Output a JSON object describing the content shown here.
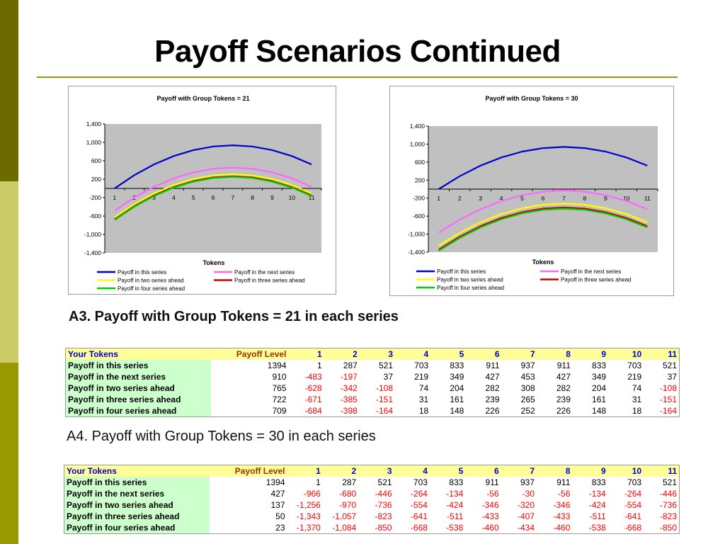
{
  "slide": {
    "title": "Payoff Scenarios Continued",
    "colors": {
      "sidebar": [
        "#6b6b00",
        "#cccc66",
        "#999900"
      ],
      "rule": "#999900"
    }
  },
  "chart_data": [
    {
      "type": "line",
      "title": "Payoff with Group Tokens = 21",
      "xlabel": "Tokens",
      "ylabel": "",
      "x": [
        1,
        2,
        3,
        4,
        5,
        6,
        7,
        8,
        9,
        10,
        11
      ],
      "ylim": [
        -1400,
        1400
      ],
      "yticks": [
        "1,400",
        "1,000",
        "600",
        "200",
        "-200",
        "-600",
        "-1,000",
        "-1,400"
      ],
      "plot_background": "#c0c0c0",
      "legend_position": "bottom",
      "series": [
        {
          "name": "Payoff in this series",
          "color": "#0000cc",
          "values": [
            1,
            287,
            521,
            703,
            833,
            911,
            937,
            911,
            833,
            703,
            521
          ]
        },
        {
          "name": "Payoff  in the next series",
          "color": "#ff66ff",
          "values": [
            -483,
            -197,
            37,
            219,
            349,
            427,
            453,
            427,
            349,
            219,
            37
          ]
        },
        {
          "name": "Payoff in two series ahead",
          "color": "#ffff00",
          "values": [
            -628,
            -342,
            -108,
            74,
            204,
            282,
            308,
            282,
            204,
            74,
            -108
          ]
        },
        {
          "name": "Payoff in three series ahead",
          "color": "#cc0000",
          "values": [
            -671,
            -385,
            -151,
            31,
            161,
            239,
            265,
            239,
            161,
            31,
            -151
          ]
        },
        {
          "name": "Payoff in four series ahead",
          "color": "#00cc00",
          "values": [
            -684,
            -398,
            -164,
            18,
            148,
            226,
            252,
            226,
            148,
            18,
            -164
          ]
        }
      ]
    },
    {
      "type": "line",
      "title": "Payoff with Group Tokens = 30",
      "xlabel": "Tokens",
      "ylabel": "",
      "x": [
        1,
        2,
        3,
        4,
        5,
        6,
        7,
        8,
        9,
        10,
        11
      ],
      "ylim": [
        -1400,
        1400
      ],
      "yticks": [
        "1,400",
        "1,000",
        "600",
        "200",
        "-200",
        "-600",
        "-1,000",
        "-1,400"
      ],
      "plot_background": "#c0c0c0",
      "legend_position": "bottom",
      "series": [
        {
          "name": "Payoff in this series",
          "color": "#0000cc",
          "values": [
            1,
            287,
            521,
            703,
            833,
            911,
            937,
            911,
            833,
            703,
            521
          ]
        },
        {
          "name": "Payoff  in the next series",
          "color": "#ff66ff",
          "values": [
            -966,
            -680,
            -446,
            -264,
            -134,
            -56,
            -30,
            -56,
            -134,
            -264,
            -446
          ]
        },
        {
          "name": "Payoff in two series ahead",
          "color": "#ffff00",
          "values": [
            -1256,
            -970,
            -736,
            -554,
            -424,
            -346,
            -320,
            -346,
            -424,
            -554,
            -736
          ]
        },
        {
          "name": "Payoff in three series ahead",
          "color": "#cc0000",
          "values": [
            -1343,
            -1057,
            -823,
            -641,
            -511,
            -433,
            -407,
            -433,
            -511,
            -641,
            -823
          ]
        },
        {
          "name": "Payoff in four series ahead",
          "color": "#00cc00",
          "values": [
            -1370,
            -1084,
            -850,
            -668,
            -538,
            -460,
            -434,
            -460,
            -538,
            -668,
            -850
          ]
        }
      ]
    }
  ],
  "tables": [
    {
      "heading": "A3. Payoff with Group Tokens = 21 in each series",
      "header": [
        "Your Tokens",
        "Payoff Level",
        "1",
        "2",
        "3",
        "4",
        "5",
        "6",
        "7",
        "8",
        "9",
        "10",
        "11"
      ],
      "rows": [
        [
          "Payoff in this series",
          "1394",
          "1",
          "287",
          "521",
          "703",
          "833",
          "911",
          "937",
          "911",
          "833",
          "703",
          "521"
        ],
        [
          "Payoff  in the next series",
          "910",
          "-483",
          "-197",
          "37",
          "219",
          "349",
          "427",
          "453",
          "427",
          "349",
          "219",
          "37"
        ],
        [
          "Payoff in two series ahead",
          "765",
          "-628",
          "-342",
          "-108",
          "74",
          "204",
          "282",
          "308",
          "282",
          "204",
          "74",
          "-108"
        ],
        [
          "Payoff in three series ahead",
          "722",
          "-671",
          "-385",
          "-151",
          "31",
          "161",
          "239",
          "265",
          "239",
          "161",
          "31",
          "-151"
        ],
        [
          "Payoff in four series ahead",
          "709",
          "-684",
          "-398",
          "-164",
          "18",
          "148",
          "226",
          "252",
          "226",
          "148",
          "18",
          "-164"
        ]
      ]
    },
    {
      "heading": "A4. Payoff with Group Tokens = 30 in each series",
      "header": [
        "Your Tokens",
        "Payoff Level",
        "1",
        "2",
        "3",
        "4",
        "5",
        "6",
        "7",
        "8",
        "9",
        "10",
        "11"
      ],
      "rows": [
        [
          "Payoff in this series",
          "1394",
          "1",
          "287",
          "521",
          "703",
          "833",
          "911",
          "937",
          "911",
          "833",
          "703",
          "521"
        ],
        [
          "Payoff  in the next series",
          "427",
          "-966",
          "-680",
          "-446",
          "-264",
          "-134",
          "-56",
          "-30",
          "-56",
          "-134",
          "-264",
          "-446"
        ],
        [
          "Payoff in two series ahead",
          "137",
          "-1,256",
          "-970",
          "-736",
          "-554",
          "-424",
          "-346",
          "-320",
          "-346",
          "-424",
          "-554",
          "-736"
        ],
        [
          "Payoff in three series ahead",
          "50",
          "-1,343",
          "-1,057",
          "-823",
          "-641",
          "-511",
          "-433",
          "-407",
          "-433",
          "-511",
          "-641",
          "-823"
        ],
        [
          "Payoff in four series ahead",
          "23",
          "-1,370",
          "-1,084",
          "-850",
          "-668",
          "-538",
          "-460",
          "-434",
          "-460",
          "-538",
          "-668",
          "-850"
        ]
      ]
    }
  ]
}
